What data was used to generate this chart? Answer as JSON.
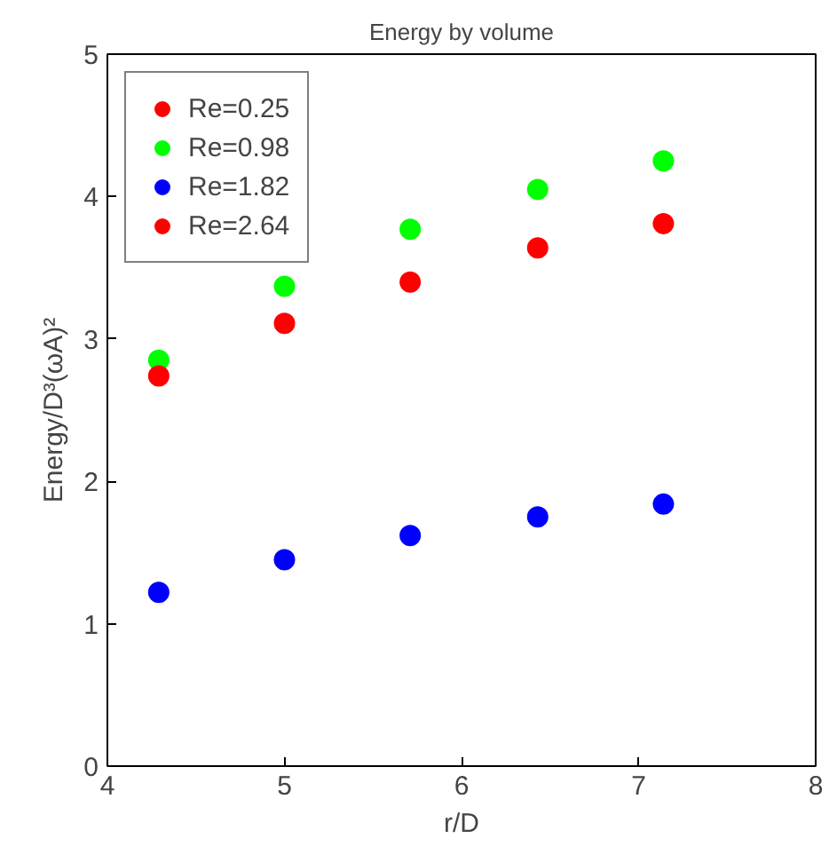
{
  "chart_data": {
    "type": "scatter",
    "title": "Energy by volume",
    "xlabel": "r/D",
    "ylabel": "Energy/D³(ωA)²",
    "x": [
      4.29,
      5.0,
      5.71,
      6.43,
      7.14
    ],
    "series": [
      {
        "name": "Re=0.25",
        "color": "#ff0000",
        "values": [
          null,
          null,
          null,
          null,
          null
        ]
      },
      {
        "name": "Re=0.98",
        "color": "#00ff00",
        "values": [
          2.85,
          3.37,
          3.77,
          4.05,
          4.25
        ]
      },
      {
        "name": "Re=1.82",
        "color": "#0000ff",
        "values": [
          1.22,
          1.45,
          1.62,
          1.75,
          1.84
        ]
      },
      {
        "name": "Re=2.64",
        "color": "#ff0000",
        "values": [
          2.74,
          3.11,
          3.4,
          3.64,
          3.81
        ]
      }
    ],
    "xlim": [
      4,
      8
    ],
    "ylim": [
      0,
      5
    ],
    "xticks": [
      4,
      5,
      6,
      7,
      8
    ],
    "yticks": [
      0,
      1,
      2,
      3,
      4,
      5
    ],
    "grid": false,
    "legend": "top left",
    "marker": "circle"
  }
}
